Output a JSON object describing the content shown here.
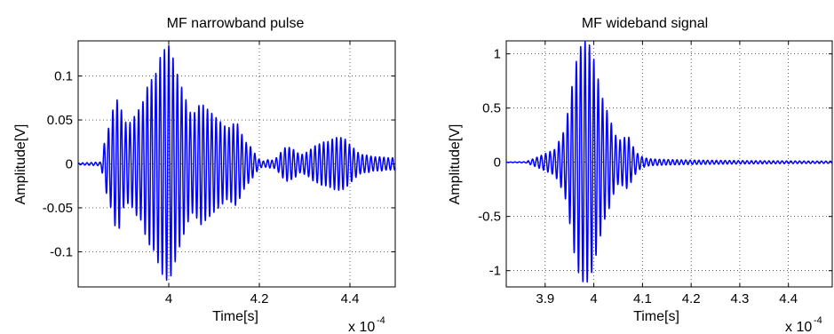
{
  "chart_data": [
    {
      "type": "line",
      "title": "MF narrowband pulse",
      "xlabel": "Time[s]",
      "ylabel": "Amplitude[V]",
      "x_multiplier_label": "x 10",
      "x_multiplier_exp": "-4",
      "xlim": [
        3.8,
        4.5
      ],
      "ylim": [
        -0.14,
        0.14
      ],
      "xticks": [
        4.0,
        4.2,
        4.4
      ],
      "xtick_labels": [
        "4",
        "4.2",
        "4.4"
      ],
      "yticks": [
        0.1,
        0.05,
        0,
        -0.05,
        -0.1
      ],
      "ytick_labels": [
        "0.1",
        "0.05",
        "0",
        "-0.05",
        "-0.1"
      ],
      "grid": true,
      "line_color": "#0000ff",
      "envelope": {
        "x": [
          3.8,
          3.85,
          3.86,
          3.87,
          3.88,
          3.89,
          3.9,
          3.91,
          3.92,
          3.93,
          3.94,
          3.95,
          3.96,
          3.97,
          3.98,
          3.99,
          4.0,
          4.01,
          4.02,
          4.03,
          4.04,
          4.05,
          4.06,
          4.07,
          4.08,
          4.09,
          4.1,
          4.11,
          4.12,
          4.13,
          4.14,
          4.15,
          4.16,
          4.17,
          4.18,
          4.19,
          4.2,
          4.21,
          4.22,
          4.23,
          4.24,
          4.25,
          4.26,
          4.27,
          4.28,
          4.29,
          4.3,
          4.31,
          4.32,
          4.33,
          4.34,
          4.35,
          4.36,
          4.37,
          4.38,
          4.39,
          4.4,
          4.41,
          4.42,
          4.43,
          4.44,
          4.45,
          4.46,
          4.47,
          4.48,
          4.49,
          4.5
        ],
        "amplitude": [
          0.001,
          0.002,
          0.03,
          0.045,
          0.07,
          0.075,
          0.05,
          0.045,
          0.05,
          0.06,
          0.065,
          0.085,
          0.095,
          0.1,
          0.12,
          0.13,
          0.135,
          0.12,
          0.1,
          0.085,
          0.07,
          0.055,
          0.06,
          0.07,
          0.065,
          0.06,
          0.055,
          0.05,
          0.045,
          0.04,
          0.045,
          0.048,
          0.035,
          0.025,
          0.02,
          0.012,
          0.005,
          0.003,
          0.005,
          0.004,
          0.008,
          0.015,
          0.02,
          0.018,
          0.015,
          0.01,
          0.012,
          0.015,
          0.02,
          0.022,
          0.025,
          0.025,
          0.028,
          0.03,
          0.03,
          0.028,
          0.022,
          0.017,
          0.012,
          0.01,
          0.01,
          0.008,
          0.008,
          0.008,
          0.007,
          0.007,
          0.007
        ]
      },
      "carrier_period": 0.0095
    },
    {
      "type": "line",
      "title": "MF wideband signal",
      "xlabel": "Time[s]",
      "ylabel": "Amplitude[V]",
      "x_multiplier_label": "x 10",
      "x_multiplier_exp": "-4",
      "xlim": [
        3.82,
        4.49
      ],
      "ylim": [
        -1.15,
        1.12
      ],
      "xticks": [
        3.9,
        4.0,
        4.1,
        4.2,
        4.3,
        4.4
      ],
      "xtick_labels": [
        "3.9",
        "4",
        "4.1",
        "4.2",
        "4.3",
        "4.4"
      ],
      "yticks": [
        1,
        0.5,
        0,
        -0.5,
        -1
      ],
      "ytick_labels": [
        "1",
        "0.5",
        "0",
        "-0.5",
        "-1"
      ],
      "grid": true,
      "line_color": "#0000ff",
      "envelope": {
        "x": [
          3.82,
          3.86,
          3.88,
          3.9,
          3.92,
          3.94,
          3.95,
          3.96,
          3.97,
          3.98,
          3.99,
          4.0,
          4.01,
          4.02,
          4.03,
          4.04,
          4.05,
          4.06,
          4.07,
          4.08,
          4.09,
          4.1,
          4.11,
          4.12,
          4.15,
          4.2,
          4.3,
          4.4,
          4.49
        ],
        "amplitude": [
          0.002,
          0.005,
          0.04,
          0.08,
          0.12,
          0.3,
          0.55,
          0.85,
          1.05,
          1.12,
          1.1,
          0.95,
          0.75,
          0.55,
          0.45,
          0.3,
          0.2,
          0.22,
          0.25,
          0.15,
          0.08,
          0.05,
          0.035,
          0.03,
          0.025,
          0.02,
          0.015,
          0.012,
          0.01
        ]
      },
      "carrier_period": 0.009
    }
  ]
}
